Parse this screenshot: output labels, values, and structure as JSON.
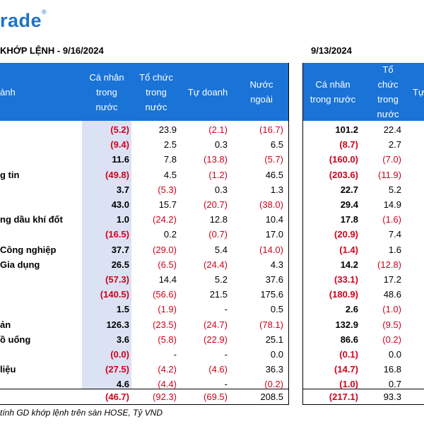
{
  "brand": {
    "logo_text": "rade",
    "registered": "®"
  },
  "title_left": "KHỚP LỆNH - 9/16/2024",
  "title_right": "9/13/2024",
  "header_left": {
    "sector": "ành",
    "col1": [
      "Cá nhân",
      "trong",
      "nước"
    ],
    "col2": [
      "Tổ chức",
      "trong",
      "nước"
    ],
    "col3": [
      "Tự doanh"
    ],
    "col4": [
      "Nước",
      "ngoài"
    ]
  },
  "header_right": {
    "col1": [
      "Cá nhân",
      "trong nước"
    ],
    "col2": [
      "Tổ",
      "chức",
      "trong",
      "nước"
    ],
    "col3": [
      "Tự"
    ]
  },
  "rows": [
    {
      "name": "",
      "v": [
        "(5.2)",
        "23.9",
        "(2.1)",
        "(16.7)",
        "101.2",
        "22.4"
      ]
    },
    {
      "name": "",
      "v": [
        "(9.4)",
        "2.5",
        "0.3",
        "6.5",
        "(8.7)",
        "2.7"
      ]
    },
    {
      "name": "",
      "v": [
        "11.6",
        "7.8",
        "(13.8)",
        "(5.7)",
        "(160.0)",
        "(7.0)"
      ]
    },
    {
      "name": "g tin",
      "v": [
        "(49.8)",
        "4.5",
        "(1.2)",
        "46.5",
        "(203.6)",
        "(11.9)"
      ]
    },
    {
      "name": "",
      "v": [
        "3.7",
        "(5.3)",
        "0.3",
        "1.3",
        "22.7",
        "5.2"
      ]
    },
    {
      "name": "",
      "v": [
        "43.0",
        "15.7",
        "(20.7)",
        "(38.0)",
        "29.4",
        "14.9"
      ]
    },
    {
      "name": "ng dầu khí đốt",
      "v": [
        "1.0",
        "(24.2)",
        "12.8",
        "10.4",
        "17.8",
        "(1.6)"
      ]
    },
    {
      "name": "",
      "v": [
        "(16.5)",
        "0.2",
        "(0.7)",
        "17.0",
        "(20.9)",
        "7.4"
      ]
    },
    {
      "name": "Công nghiệp",
      "v": [
        "37.7",
        "(29.0)",
        "5.4",
        "(14.0)",
        "(1.4)",
        "1.6"
      ]
    },
    {
      "name": "Gia dụng",
      "v": [
        "26.5",
        "(6.5)",
        "(24.4)",
        "4.3",
        "14.2",
        "(12.8)"
      ]
    },
    {
      "name": "",
      "v": [
        "(57.3)",
        "14.4",
        "5.2",
        "37.6",
        "(33.1)",
        "17.2"
      ]
    },
    {
      "name": "",
      "v": [
        "(140.5)",
        "(56.6)",
        "21.5",
        "175.6",
        "(180.9)",
        "48.6"
      ]
    },
    {
      "name": "",
      "v": [
        "1.5",
        "(1.9)",
        "-",
        "0.5",
        "2.6",
        "(1.0)"
      ]
    },
    {
      "name": "ản",
      "v": [
        "126.3",
        "(23.5)",
        "(24.7)",
        "(78.1)",
        "132.9",
        "(9.5)"
      ]
    },
    {
      "name": "ồ uống",
      "v": [
        "3.6",
        "(5.8)",
        "(22.9)",
        "25.1",
        "86.6",
        "(0.2)"
      ]
    },
    {
      "name": "",
      "v": [
        "(0.0)",
        "-",
        "-",
        "0.0",
        "(0.1)",
        "0.0"
      ]
    },
    {
      "name": "liệu",
      "v": [
        "(27.5)",
        "(4.2)",
        "(4.6)",
        "36.3",
        "(14.7)",
        "16.8"
      ]
    },
    {
      "name": "",
      "v": [
        "4.6",
        "(4.4)",
        "-",
        "(0.2)",
        "(1.0)",
        "0.7"
      ]
    }
  ],
  "total": {
    "v": [
      "(46.7)",
      "(92.3)",
      "(69.5)",
      "208.5",
      "(217.1)",
      "93.3"
    ]
  },
  "footnote": "tính GD khớp lệnh trên sàn HOSE, Tỷ VND"
}
